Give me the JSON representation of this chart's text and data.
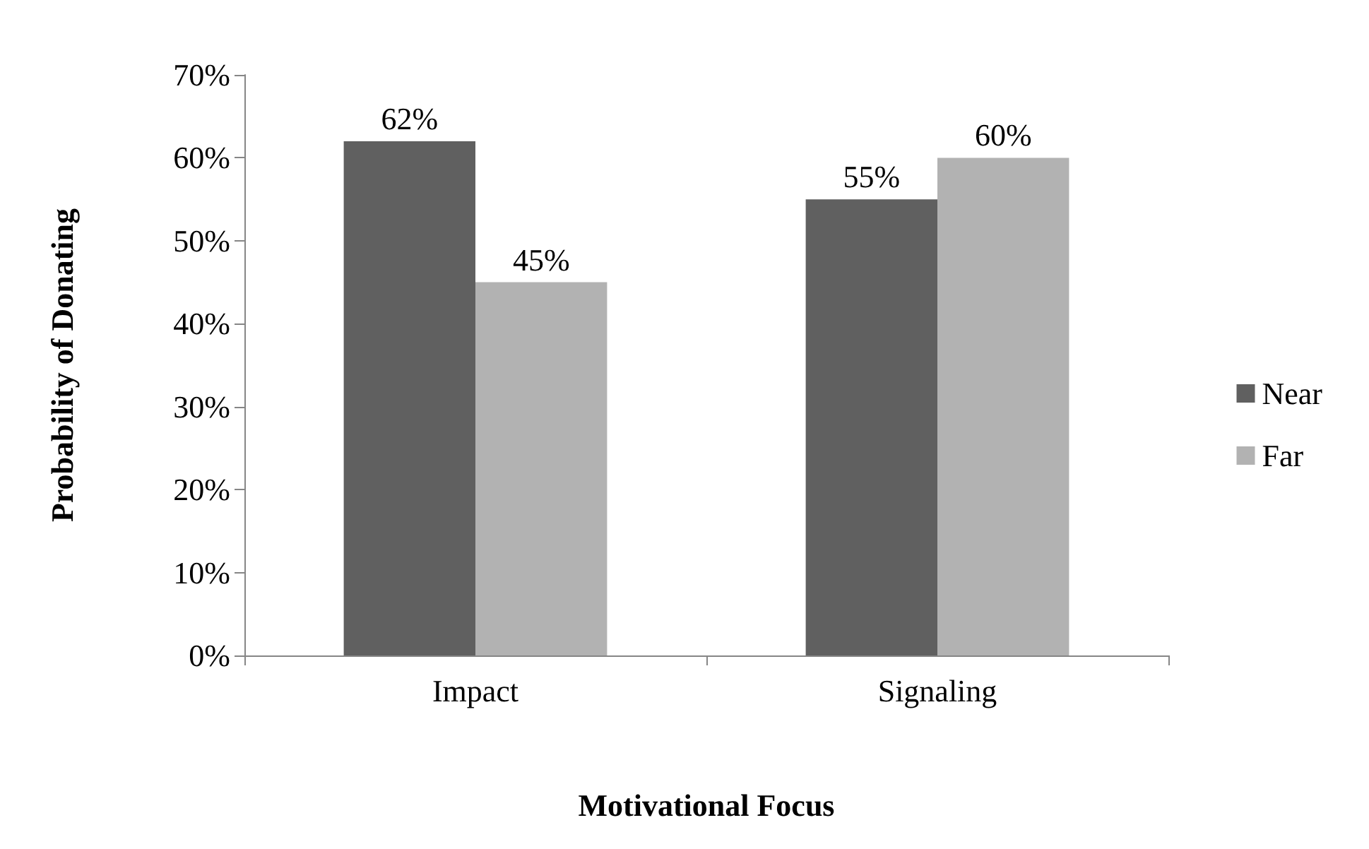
{
  "chart_data": {
    "type": "bar",
    "xlabel": "Motivational Focus",
    "ylabel": "Probability of Donating",
    "categories": [
      "Impact",
      "Signaling"
    ],
    "series": [
      {
        "name": "Near",
        "color": "#606060",
        "values": [
          62,
          55
        ],
        "value_labels": [
          "62%",
          "55%"
        ]
      },
      {
        "name": "Far",
        "color": "#b2b2b2",
        "values": [
          45,
          60
        ],
        "value_labels": [
          "45%",
          "60%"
        ]
      }
    ],
    "ylim": [
      0,
      70
    ],
    "yticks": [
      {
        "value": 0,
        "label": "0%"
      },
      {
        "value": 10,
        "label": "10%"
      },
      {
        "value": 20,
        "label": "20%"
      },
      {
        "value": 30,
        "label": "30%"
      },
      {
        "value": 40,
        "label": "40%"
      },
      {
        "value": 50,
        "label": "50%"
      },
      {
        "value": 60,
        "label": "60%"
      },
      {
        "value": 70,
        "label": "70%"
      }
    ],
    "grid": false,
    "legend": "right"
  }
}
